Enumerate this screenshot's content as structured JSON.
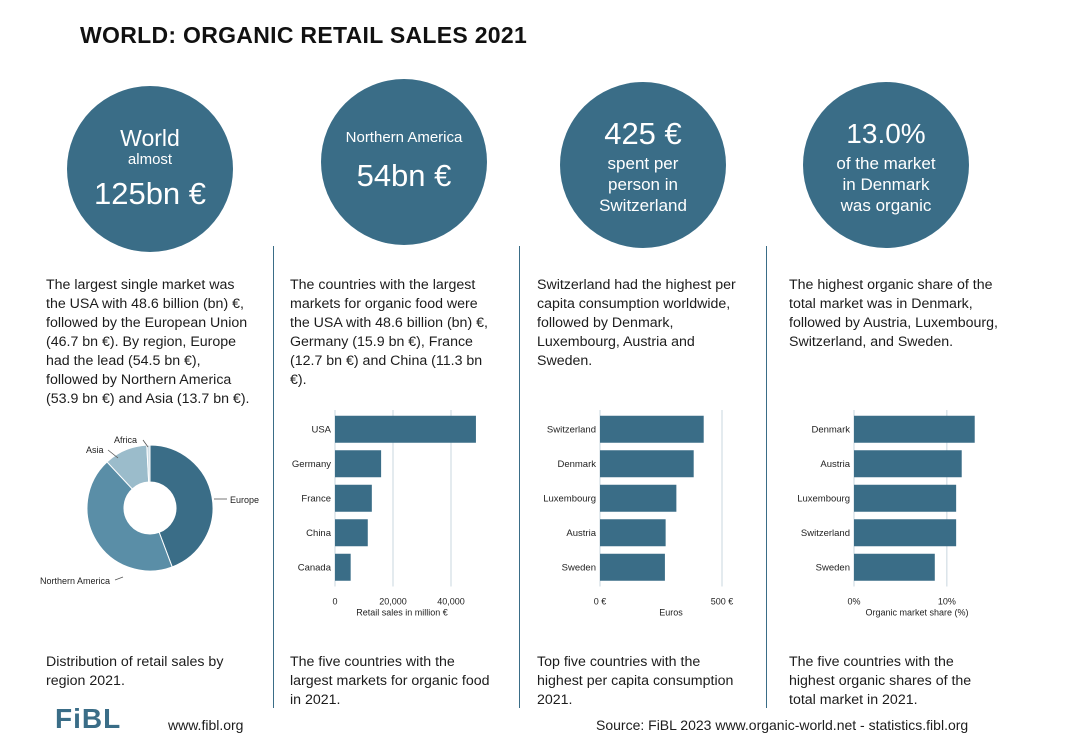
{
  "title": "WORLD: ORGANIC RETAIL SALES 2021",
  "circles": [
    {
      "line1": "World",
      "line2": "almost",
      "line3": "125bn €"
    },
    {
      "line1": "Northern America",
      "line2": "54bn €"
    },
    {
      "line1": "425 €",
      "line2": "spent per",
      "line3": "person in",
      "line4": "Switzerland"
    },
    {
      "line1": "13.0%",
      "line2": "of the market",
      "line3": "in Denmark",
      "line4": "was organic"
    }
  ],
  "paragraphs": [
    [
      "The largest single market was",
      "the USA with 48.6 billion (bn) €,",
      "followed by the European Union",
      "(46.7 bn €). By region, Europe",
      "had the lead (54.5 bn €),",
      "followed by Northern America",
      "(53.9 bn €) and Asia (13.7 bn €)."
    ],
    [
      "The countries with the largest",
      "markets for organic food were",
      "the USA with 48.6 billion (bn) €,",
      "Germany (15.9 bn €), France",
      "(12.7 bn €) and China (11.3 bn",
      "€)."
    ],
    [
      "Switzerland had the highest per",
      "capita consumption worldwide,",
      "followed by Denmark,",
      "Luxembourg,  Austria and",
      "Sweden."
    ],
    [
      "The highest organic share of the",
      "total market was in Denmark,",
      "followed by Austria, Luxembourg,",
      "Switzerland, and Sweden."
    ]
  ],
  "captions": [
    [
      "Distribution of retail sales by",
      "region 2021."
    ],
    [
      "The five countries with the",
      "largest markets for organic food",
      "in 2021."
    ],
    [
      "Top five countries with the",
      "highest per capita consumption",
      "2021."
    ],
    [
      "The five countries with the",
      "highest organic shares of the",
      "total market in 2021."
    ]
  ],
  "footer": {
    "logo": "FiBL",
    "website": "www.fibl.org",
    "source": "Source: FiBL 2023 www.organic-world.net - statistics.fibl.org"
  },
  "colors": {
    "primary": "#3a6d87",
    "mid": "#5a8ea7",
    "light": "#9bbccb",
    "pale": "#cfdee6"
  },
  "chart_data": [
    {
      "type": "pie",
      "title": "Distribution of retail sales by region 2021",
      "categories": [
        "Europe",
        "Northern America",
        "Asia",
        "Africa"
      ],
      "values": [
        54.5,
        53.9,
        13.7,
        1.0
      ]
    },
    {
      "type": "bar",
      "orientation": "horizontal",
      "categories": [
        "USA",
        "Germany",
        "France",
        "China",
        "Canada"
      ],
      "values": [
        48600,
        15900,
        12700,
        11300,
        5400
      ],
      "xlabel": "Retail sales in million €",
      "xlim": [
        0,
        50000
      ],
      "ticks": [
        "0",
        "20,000",
        "40,000"
      ],
      "tick_values": [
        0,
        20000,
        40000
      ],
      "grid": true
    },
    {
      "type": "bar",
      "orientation": "horizontal",
      "categories": [
        "Switzerland",
        "Denmark",
        "Luxembourg",
        "Austria",
        "Sweden"
      ],
      "values": [
        425,
        384,
        313,
        269,
        266
      ],
      "xlabel": "Euros",
      "xlim": [
        0,
        500
      ],
      "ticks": [
        "0 €",
        "500 €"
      ],
      "tick_values": [
        0,
        500
      ],
      "grid": true
    },
    {
      "type": "bar",
      "orientation": "horizontal",
      "categories": [
        "Denmark",
        "Austria",
        "Luxembourg",
        "Switzerland",
        "Sweden"
      ],
      "values": [
        13.0,
        11.6,
        11.0,
        11.0,
        8.7
      ],
      "xlabel": "Organic market share (%)",
      "xlim": [
        0,
        14
      ],
      "ticks": [
        "0%",
        "10%"
      ],
      "tick_values": [
        0,
        10
      ],
      "grid": true
    }
  ]
}
